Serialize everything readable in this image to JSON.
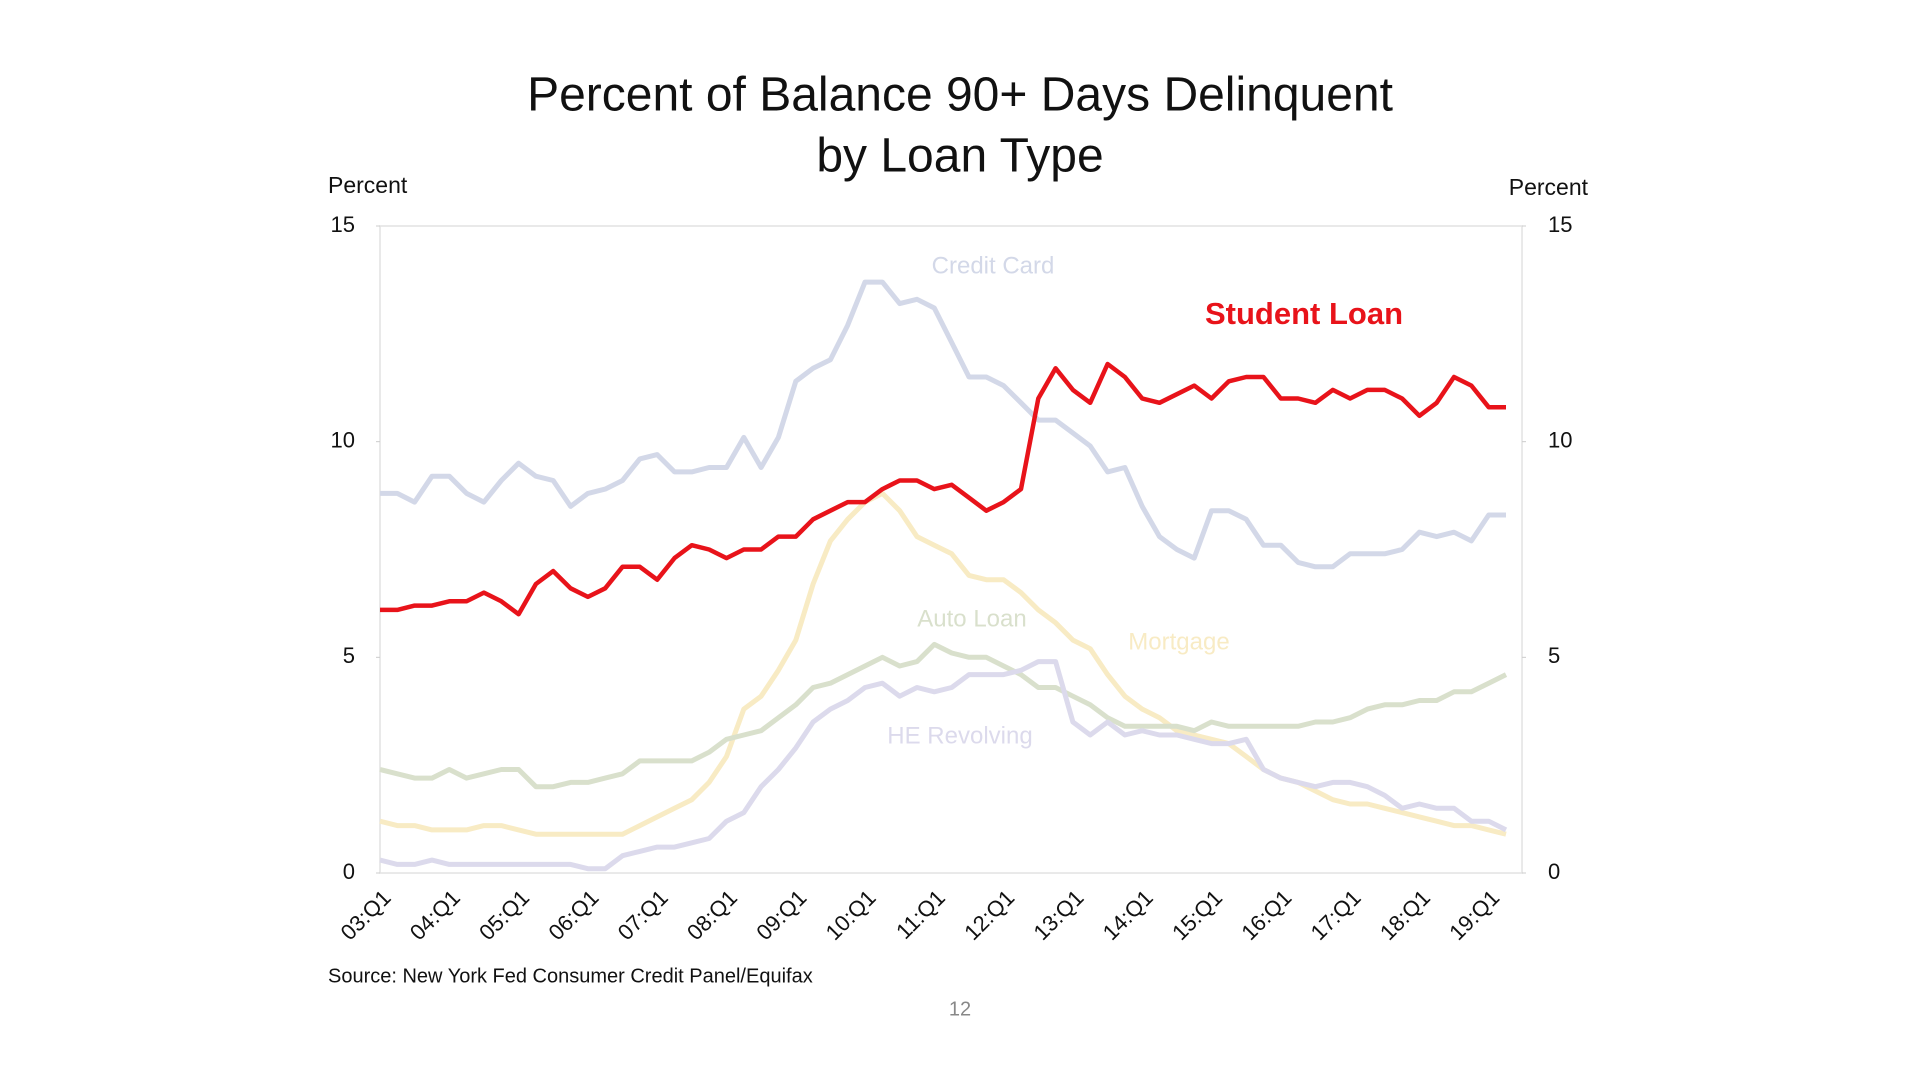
{
  "chart_data": {
    "type": "line",
    "title": [
      "Percent of Balance 90+ Days Delinquent",
      "by Loan Type"
    ],
    "y_label": "Percent",
    "y2_label": "Percent",
    "source": "Source: New York Fed Consumer Credit Panel/Equifax",
    "page_number": "12",
    "categories": [
      "03:Q1",
      null,
      null,
      null,
      "04:Q1",
      null,
      null,
      null,
      "05:Q1",
      null,
      null,
      null,
      "06:Q1",
      null,
      null,
      null,
      "07:Q1",
      null,
      null,
      null,
      "08:Q1",
      null,
      null,
      null,
      "09:Q1",
      null,
      null,
      null,
      "10:Q1",
      null,
      null,
      null,
      "11:Q1",
      null,
      null,
      null,
      "12:Q1",
      null,
      null,
      null,
      "13:Q1",
      null,
      null,
      null,
      "14:Q1",
      null,
      null,
      null,
      "15:Q1",
      null,
      null,
      null,
      "16:Q1",
      null,
      null,
      null,
      "17:Q1",
      null,
      null,
      null,
      "18:Q1",
      null,
      null,
      null,
      "19:Q1",
      null
    ],
    "ylim": [
      0,
      15
    ],
    "yticks": [
      0,
      5,
      10,
      15
    ],
    "y2lim": [
      0,
      15
    ],
    "y2ticks": [
      0,
      5,
      10,
      15
    ],
    "series": [
      {
        "name": "Credit Card",
        "color": "#d3d8e8",
        "values": [
          8.8,
          8.8,
          8.6,
          9.2,
          9.2,
          8.8,
          8.6,
          9.1,
          9.5,
          9.2,
          9.1,
          8.5,
          8.8,
          8.9,
          9.1,
          9.6,
          9.7,
          9.3,
          9.3,
          9.4,
          9.4,
          10.1,
          9.4,
          10.1,
          11.4,
          11.7,
          11.9,
          12.7,
          13.7,
          13.7,
          13.2,
          13.3,
          13.1,
          12.3,
          11.5,
          11.5,
          11.3,
          10.9,
          10.5,
          10.5,
          10.2,
          9.9,
          9.3,
          9.4,
          8.5,
          7.8,
          7.5,
          7.3,
          8.4,
          8.4,
          8.2,
          7.6,
          7.6,
          7.2,
          7.1,
          7.1,
          7.4,
          7.4,
          7.4,
          7.5,
          7.9,
          7.8,
          7.9,
          7.7,
          8.3,
          8.3
        ]
      },
      {
        "name": "Mortgage",
        "color": "#f8ebc4",
        "values": [
          1.2,
          1.1,
          1.1,
          1.0,
          1.0,
          1.0,
          1.1,
          1.1,
          1.0,
          0.9,
          0.9,
          0.9,
          0.9,
          0.9,
          0.9,
          1.1,
          1.3,
          1.5,
          1.7,
          2.1,
          2.7,
          3.8,
          4.1,
          4.7,
          5.4,
          6.7,
          7.7,
          8.2,
          8.6,
          8.8,
          8.4,
          7.8,
          7.6,
          7.4,
          6.9,
          6.8,
          6.8,
          6.5,
          6.1,
          5.8,
          5.4,
          5.2,
          4.6,
          4.1,
          3.8,
          3.6,
          3.3,
          3.2,
          3.1,
          3.0,
          2.7,
          2.4,
          2.2,
          2.1,
          1.9,
          1.7,
          1.6,
          1.6,
          1.5,
          1.4,
          1.3,
          1.2,
          1.1,
          1.1,
          1.0,
          0.9
        ]
      },
      {
        "name": "Auto Loan",
        "color": "#d9e0cc",
        "values": [
          2.4,
          2.3,
          2.2,
          2.2,
          2.4,
          2.2,
          2.3,
          2.4,
          2.4,
          2.0,
          2.0,
          2.1,
          2.1,
          2.2,
          2.3,
          2.6,
          2.6,
          2.6,
          2.6,
          2.8,
          3.1,
          3.2,
          3.3,
          3.6,
          3.9,
          4.3,
          4.4,
          4.6,
          4.8,
          5.0,
          4.8,
          4.9,
          5.3,
          5.1,
          5.0,
          5.0,
          4.8,
          4.6,
          4.3,
          4.3,
          4.1,
          3.9,
          3.6,
          3.4,
          3.4,
          3.4,
          3.4,
          3.3,
          3.5,
          3.4,
          3.4,
          3.4,
          3.4,
          3.4,
          3.5,
          3.5,
          3.6,
          3.8,
          3.9,
          3.9,
          4.0,
          4.0,
          4.2,
          4.2,
          4.4,
          4.6
        ]
      },
      {
        "name": "HE Revolving",
        "color": "#dcdaec",
        "values": [
          0.3,
          0.2,
          0.2,
          0.3,
          0.2,
          0.2,
          0.2,
          0.2,
          0.2,
          0.2,
          0.2,
          0.2,
          0.1,
          0.1,
          0.4,
          0.5,
          0.6,
          0.6,
          0.7,
          0.8,
          1.2,
          1.4,
          2.0,
          2.4,
          2.9,
          3.5,
          3.8,
          4.0,
          4.3,
          4.4,
          4.1,
          4.3,
          4.2,
          4.3,
          4.6,
          4.6,
          4.6,
          4.7,
          4.9,
          4.9,
          3.5,
          3.2,
          3.5,
          3.2,
          3.3,
          3.2,
          3.2,
          3.1,
          3.0,
          3.0,
          3.1,
          2.4,
          2.2,
          2.1,
          2.0,
          2.1,
          2.1,
          2.0,
          1.8,
          1.5,
          1.6,
          1.5,
          1.5,
          1.2,
          1.2,
          1.0
        ]
      },
      {
        "name": "Student Loan",
        "color": "#e8131a",
        "values": [
          6.1,
          6.1,
          6.2,
          6.2,
          6.3,
          6.3,
          6.5,
          6.3,
          6.0,
          6.7,
          7.0,
          6.6,
          6.4,
          6.6,
          7.1,
          7.1,
          6.8,
          7.3,
          7.6,
          7.5,
          7.3,
          7.5,
          7.5,
          7.8,
          7.8,
          8.2,
          8.4,
          8.6,
          8.6,
          8.9,
          9.1,
          9.1,
          8.9,
          9.0,
          8.7,
          8.4,
          8.6,
          8.9,
          11.0,
          11.7,
          11.2,
          10.9,
          11.8,
          11.5,
          11.0,
          10.9,
          11.1,
          11.3,
          11.0,
          11.4,
          11.5,
          11.5,
          11.0,
          11.0,
          10.9,
          11.2,
          11.0,
          11.2,
          11.2,
          11.0,
          10.6,
          10.9,
          11.5,
          11.3,
          10.8,
          10.8
        ]
      }
    ]
  }
}
